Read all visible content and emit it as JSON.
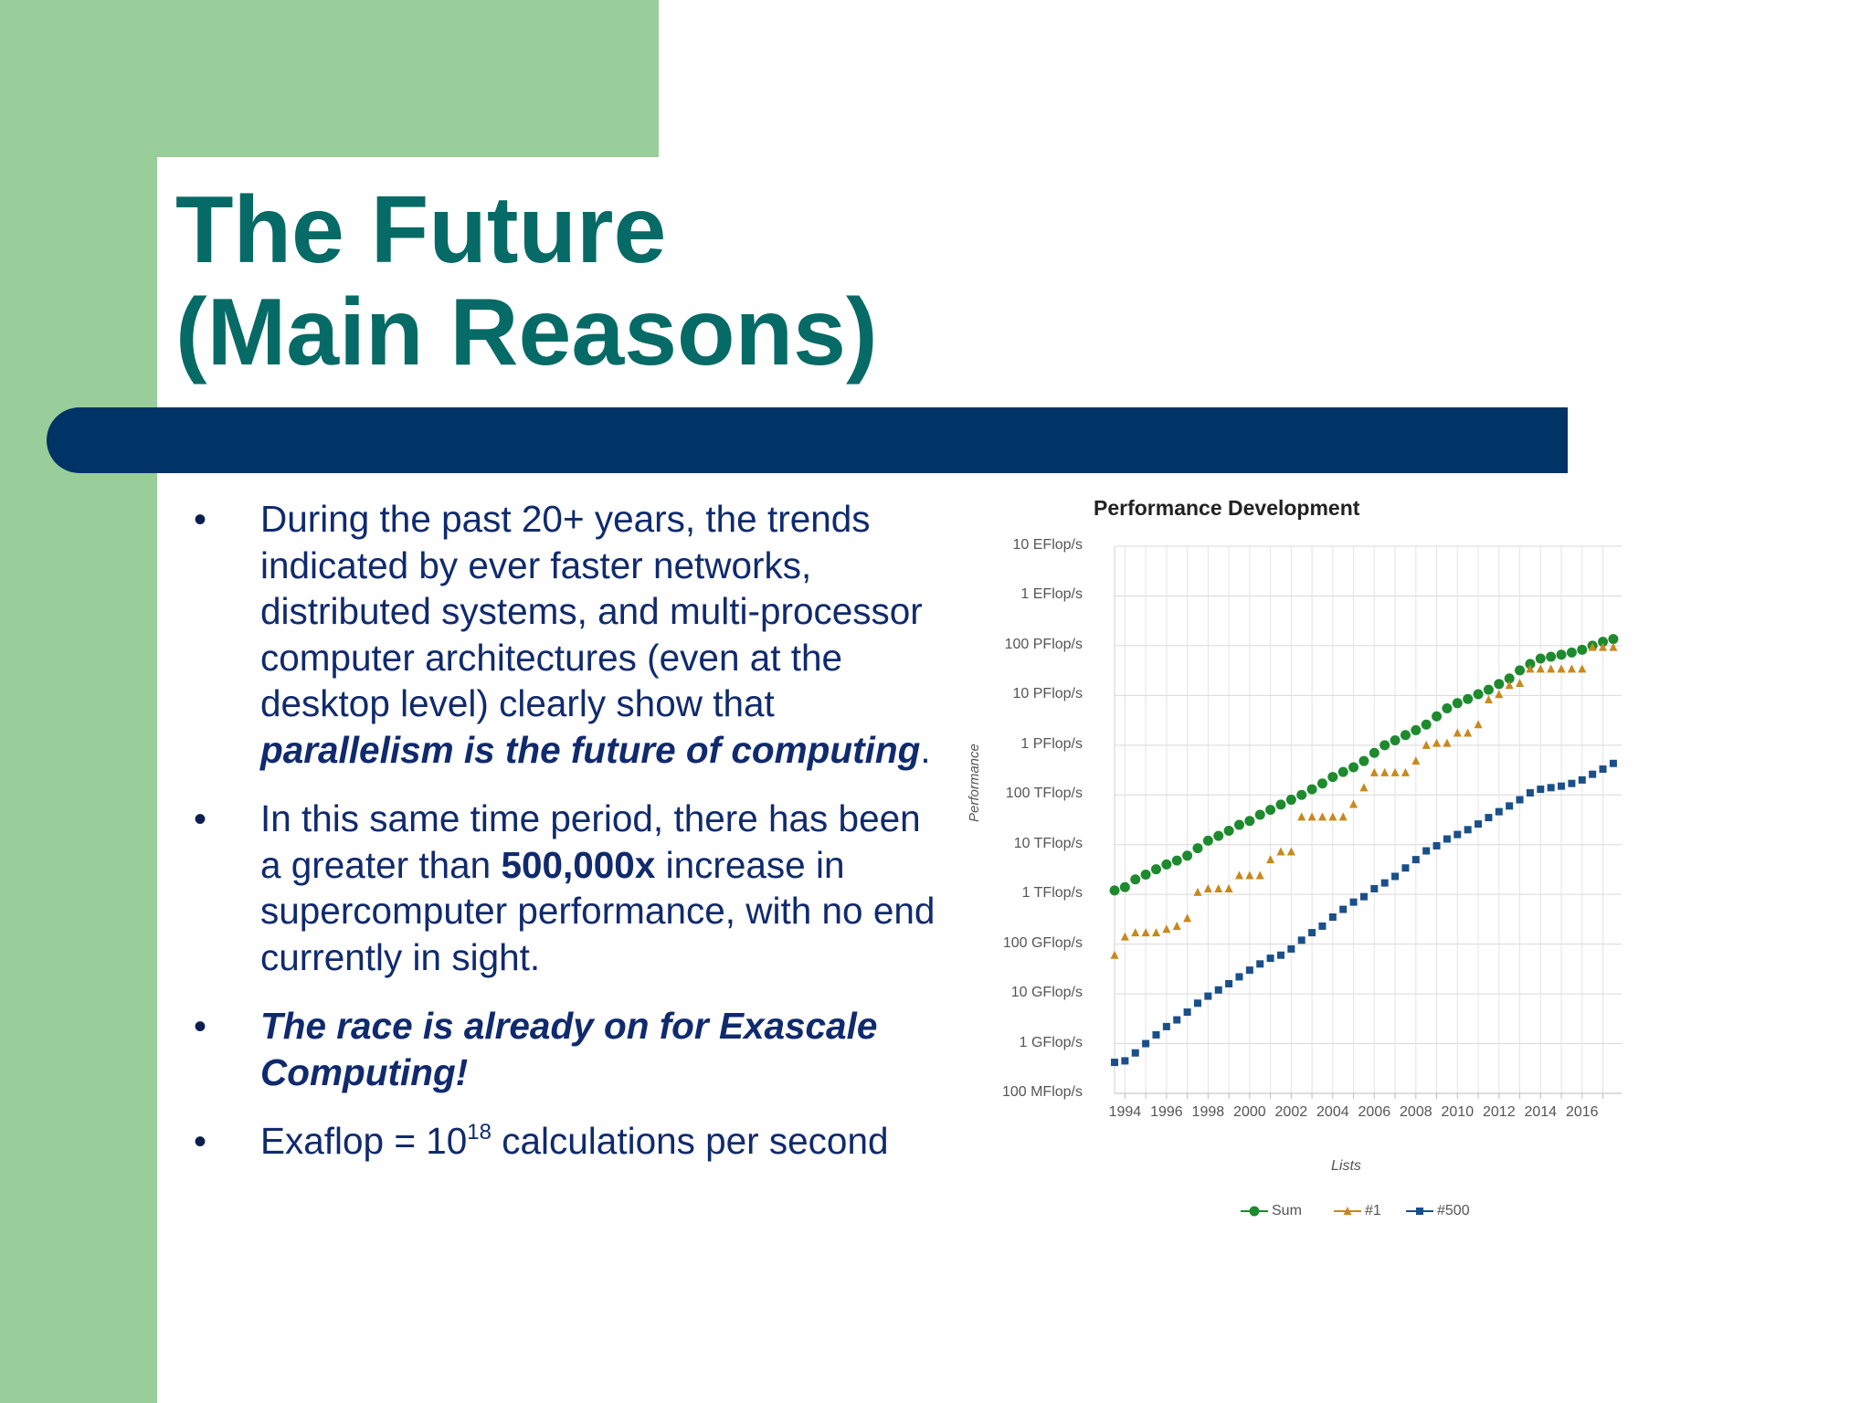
{
  "slide": {
    "title_line1": "The Future",
    "title_line2": "(Main Reasons)",
    "colors": {
      "green": "#99cd99",
      "title": "#066a66",
      "bar": "#003366",
      "text": "#102a6e"
    }
  },
  "bullets": [
    {
      "text1": "During the past 20+ years, the trends indicated by ever faster networks, distributed systems, and multi-processor computer architectures (even at the desktop level) clearly show that ",
      "emph": "parallelism is the future of computing",
      "text2": "."
    },
    {
      "text1": "In this same time period, there has been a greater than ",
      "emph": "500,000x",
      "text2": " increase in supercomputer performance, with no end currently in sight."
    },
    {
      "emph": "The race is already on for Exascale Computing!"
    },
    {
      "text1": "Exaflop = 10",
      "sup": "18",
      "text2": " calculations per second"
    }
  ],
  "chart_data": {
    "type": "scatter",
    "title": "Performance Development",
    "xlabel": "Lists",
    "ylabel": "Performance",
    "y_scale": "log",
    "y_unit": "Flop/s",
    "ylim": [
      100000000.0,
      1e+19
    ],
    "xlim": [
      1993.5,
      2017.9
    ],
    "y_ticks": [
      {
        "value": 100000000.0,
        "label": "100 MFlop/s"
      },
      {
        "value": 1000000000.0,
        "label": "1 GFlop/s"
      },
      {
        "value": 10000000000.0,
        "label": "10 GFlop/s"
      },
      {
        "value": 100000000000.0,
        "label": "100 GFlop/s"
      },
      {
        "value": 1000000000000.0,
        "label": "1 TFlop/s"
      },
      {
        "value": 10000000000000.0,
        "label": "10 TFlop/s"
      },
      {
        "value": 100000000000000.0,
        "label": "100 TFlop/s"
      },
      {
        "value": 1000000000000000.0,
        "label": "1 PFlop/s"
      },
      {
        "value": 1e+16,
        "label": "10 PFlop/s"
      },
      {
        "value": 1e+17,
        "label": "100 PFlop/s"
      },
      {
        "value": 1e+18,
        "label": "1 EFlop/s"
      },
      {
        "value": 1e+19,
        "label": "10 EFlop/s"
      }
    ],
    "x_tick_labels": [
      "1994",
      "1996",
      "1998",
      "2000",
      "2002",
      "2004",
      "2006",
      "2008",
      "2010",
      "2012",
      "2014",
      "2016"
    ],
    "x_ticks": [
      1994,
      1996,
      1998,
      2000,
      2002,
      2004,
      2006,
      2008,
      2010,
      2012,
      2014,
      2016
    ],
    "grid": true,
    "legend_position": "bottom",
    "series": [
      {
        "name": "Sum",
        "color": "#1e8a2e",
        "marker": "circle",
        "x": [
          1993.5,
          1994,
          1994.5,
          1995,
          1995.5,
          1996,
          1996.5,
          1997,
          1997.5,
          1998,
          1998.5,
          1999,
          1999.5,
          2000,
          2000.5,
          2001,
          2001.5,
          2002,
          2002.5,
          2003,
          2003.5,
          2004,
          2004.5,
          2005,
          2005.5,
          2006,
          2006.5,
          2007,
          2007.5,
          2008,
          2008.5,
          2009,
          2009.5,
          2010,
          2010.5,
          2011,
          2011.5,
          2012,
          2012.5,
          2013,
          2013.5,
          2014,
          2014.5,
          2015,
          2015.5,
          2016,
          2016.5,
          2017,
          2017.5
        ],
        "y": [
          1200000000000.0,
          1400000000000.0,
          2000000000000.0,
          2500000000000.0,
          3200000000000.0,
          4000000000000.0,
          4800000000000.0,
          6000000000000.0,
          8500000000000.0,
          12000000000000.0,
          15000000000000.0,
          19000000000000.0,
          25000000000000.0,
          30000000000000.0,
          40000000000000.0,
          50000000000000.0,
          64000000000000.0,
          80000000000000.0,
          100000000000000.0,
          130000000000000.0,
          170000000000000.0,
          230000000000000.0,
          290000000000000.0,
          360000000000000.0,
          480000000000000.0,
          700000000000000.0,
          1000000000000000.0,
          1250000000000000.0,
          1600000000000000.0,
          2000000000000000.0,
          2600000000000000.0,
          3800000000000000.0,
          5500000000000000.0,
          7000000000000000.0,
          8500000000000000.0,
          1.06e+16,
          1.3e+16,
          1.7e+16,
          2.2e+16,
          3.2e+16,
          4.3e+16,
          5.5e+16,
          6e+16,
          6.6e+16,
          7.3e+16,
          8.3e+16,
          1e+17,
          1.2e+17,
          1.36e+17
        ]
      },
      {
        "name": "#1",
        "color": "#c8891c",
        "marker": "triangle",
        "x": [
          1993.5,
          1994,
          1994.5,
          1995,
          1995.5,
          1996,
          1996.5,
          1997,
          1997.5,
          1998,
          1998.5,
          1999,
          1999.5,
          2000,
          2000.5,
          2001,
          2001.5,
          2002,
          2002.5,
          2003,
          2003.5,
          2004,
          2004.5,
          2005,
          2005.5,
          2006,
          2006.5,
          2007,
          2007.5,
          2008,
          2008.5,
          2009,
          2009.5,
          2010,
          2010.5,
          2011,
          2011.5,
          2012,
          2012.5,
          2013,
          2013.5,
          2014,
          2014.5,
          2015,
          2015.5,
          2016,
          2016.5,
          2017,
          2017.5
        ],
        "y": [
          60000000000.0,
          140000000000.0,
          170000000000.0,
          170000000000.0,
          170000000000.0,
          200000000000.0,
          230000000000.0,
          330000000000.0,
          1100000000000.0,
          1300000000000.0,
          1300000000000.0,
          1300000000000.0,
          2400000000000.0,
          2400000000000.0,
          2400000000000.0,
          5000000000000.0,
          7200000000000.0,
          7200000000000.0,
          36000000000000.0,
          36000000000000.0,
          36000000000000.0,
          36000000000000.0,
          36000000000000.0,
          65000000000000.0,
          140000000000000.0,
          280000000000000.0,
          280000000000000.0,
          280000000000000.0,
          280000000000000.0,
          480000000000000.0,
          1000000000000000.0,
          1100000000000000.0,
          1100000000000000.0,
          1760000000000000.0,
          1760000000000000.0,
          2600000000000000.0,
          8200000000000000.0,
          1.05e+16,
          1.6e+16,
          1.76e+16,
          3.4e+16,
          3.4e+16,
          3.4e+16,
          3.4e+16,
          3.4e+16,
          3.4e+16,
          9.3e+16,
          9.3e+16,
          9.3e+16
        ]
      },
      {
        "name": "#500",
        "color": "#1a4f8a",
        "marker": "square",
        "x": [
          1993.5,
          1994,
          1994.5,
          1995,
          1995.5,
          1996,
          1996.5,
          1997,
          1997.5,
          1998,
          1998.5,
          1999,
          1999.5,
          2000,
          2000.5,
          2001,
          2001.5,
          2002,
          2002.5,
          2003,
          2003.5,
          2004,
          2004.5,
          2005,
          2005.5,
          2006,
          2006.5,
          2007,
          2007.5,
          2008,
          2008.5,
          2009,
          2009.5,
          2010,
          2010.5,
          2011,
          2011.5,
          2012,
          2012.5,
          2013,
          2013.5,
          2014,
          2014.5,
          2015,
          2015.5,
          2016,
          2016.5,
          2017,
          2017.5
        ],
        "y": [
          420000000.0,
          450000000.0,
          650000000.0,
          1000000000.0,
          1500000000.0,
          2200000000.0,
          3000000000.0,
          4300000000.0,
          6500000000.0,
          9000000000.0,
          12000000000.0,
          16000000000.0,
          22000000000.0,
          30000000000.0,
          40000000000.0,
          52000000000.0,
          60000000000.0,
          80000000000.0,
          120000000000.0,
          170000000000.0,
          230000000000.0,
          350000000000.0,
          500000000000.0,
          700000000000.0,
          900000000000.0,
          1300000000000.0,
          1700000000000.0,
          2300000000000.0,
          3400000000000.0,
          5000000000000.0,
          7500000000000.0,
          9500000000000.0,
          13000000000000.0,
          16000000000000.0,
          20000000000000.0,
          26000000000000.0,
          35000000000000.0,
          46000000000000.0,
          60000000000000.0,
          80000000000000.0,
          110000000000000.0,
          130000000000000.0,
          140000000000000.0,
          150000000000000.0,
          170000000000000.0,
          200000000000000.0,
          260000000000000.0,
          330000000000000.0,
          430000000000000.0
        ]
      }
    ]
  }
}
